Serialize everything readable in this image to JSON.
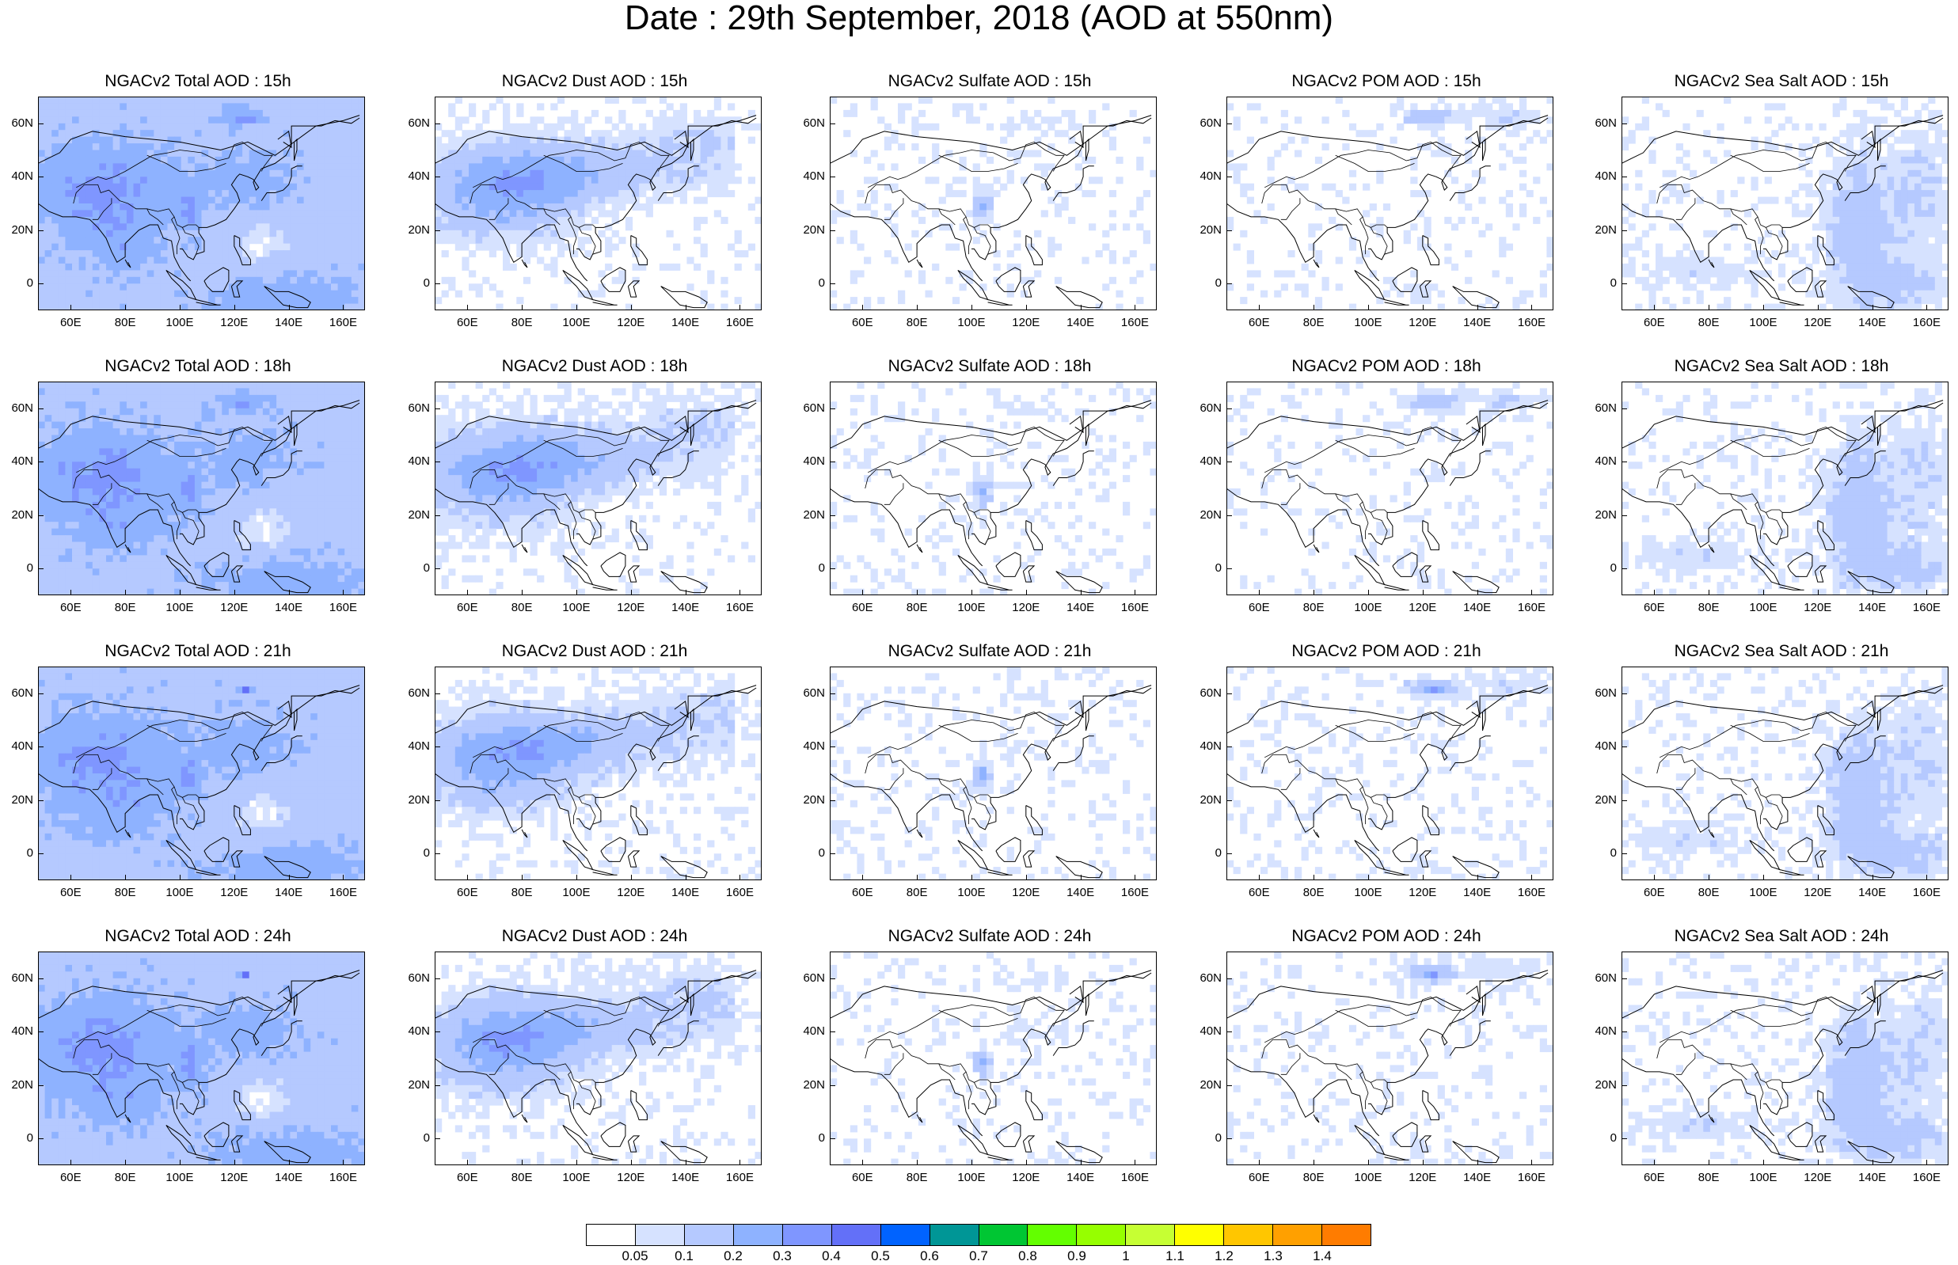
{
  "title": "Date : 29th September, 2018 (AOD at 550nm)",
  "panel_titles": [
    [
      "NGACv2 Total AOD : 15h",
      "NGACv2 Dust AOD : 15h",
      "NGACv2 Sulfate AOD : 15h",
      "NGACv2 POM AOD : 15h",
      "NGACv2 Sea Salt AOD : 15h"
    ],
    [
      "NGACv2 Total AOD : 18h",
      "NGACv2 Dust AOD : 18h",
      "NGACv2 Sulfate AOD : 18h",
      "NGACv2 POM AOD : 18h",
      "NGACv2 Sea Salt AOD : 18h"
    ],
    [
      "NGACv2 Total AOD : 21h",
      "NGACv2 Dust AOD : 21h",
      "NGACv2 Sulfate AOD : 21h",
      "NGACv2 POM AOD : 21h",
      "NGACv2 Sea Salt AOD : 21h"
    ],
    [
      "NGACv2 Total AOD : 24h",
      "NGACv2 Dust AOD : 24h",
      "NGACv2 Sulfate AOD : 24h",
      "NGACv2 POM AOD : 24h",
      "NGACv2 Sea Salt  AOD : 24h"
    ]
  ],
  "species": [
    "total",
    "dust",
    "sulfate",
    "pom",
    "seasalt"
  ],
  "map_extent": {
    "lon": [
      48,
      168
    ],
    "lat": [
      -10,
      70
    ]
  },
  "lon_ticks": [
    60,
    80,
    100,
    120,
    140,
    160
  ],
  "lon_labels": [
    "60E",
    "80E",
    "100E",
    "120E",
    "140E",
    "160E"
  ],
  "lat_ticks": [
    60,
    40,
    20,
    0
  ],
  "lat_labels": [
    "60N",
    "40N",
    "20N",
    "0"
  ],
  "colorbar": {
    "colors": [
      "#ffffff",
      "#d6e2ff",
      "#b5c9ff",
      "#8eb2ff",
      "#7f96ff",
      "#6370f8",
      "#0063ff",
      "#009696",
      "#00c633",
      "#63ff00",
      "#96ff00",
      "#c6ff33",
      "#ffff00",
      "#ffc600",
      "#ffa000",
      "#ff7c00",
      "#ff1900"
    ],
    "labels": [
      "0.05",
      "0.1",
      "0.2",
      "0.3",
      "0.4",
      "0.5",
      "0.6",
      "0.7",
      "0.8",
      "0.9",
      "1",
      "1.1",
      "1.2",
      "1.3",
      "1.4"
    ],
    "bounds": [
      0.05,
      0.1,
      0.2,
      0.3,
      0.4,
      0.5,
      0.6,
      0.7,
      0.8,
      0.9,
      1.0,
      1.1,
      1.2,
      1.3,
      1.4
    ]
  }
}
